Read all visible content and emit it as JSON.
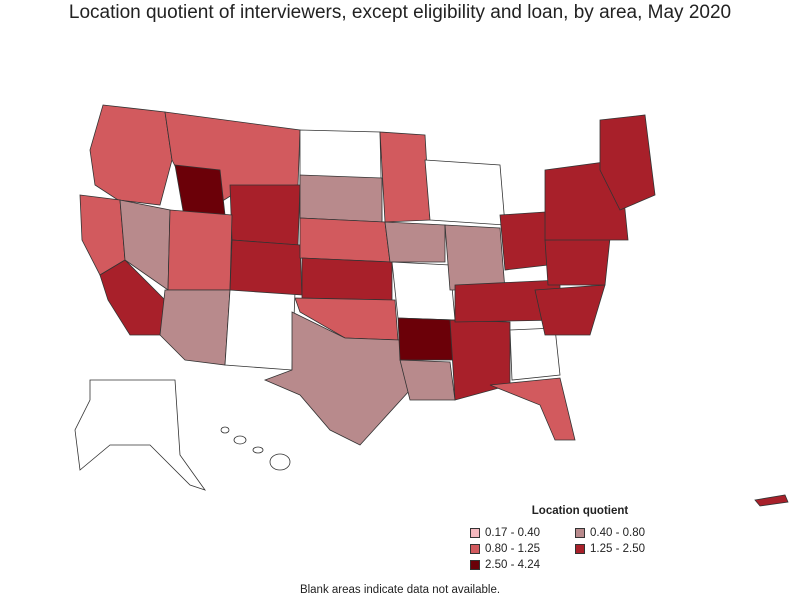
{
  "title": "Location quotient of interviewers, except eligibility and loan, by area, May 2020",
  "legend": {
    "title": "Location quotient",
    "items": [
      {
        "label": "0.17 - 0.40",
        "color": "#f4b8be"
      },
      {
        "label": "0.40 - 0.80",
        "color": "#b88a8c"
      },
      {
        "label": "0.80 - 1.25",
        "color": "#d25a5e"
      },
      {
        "label": "1.25 - 2.50",
        "color": "#a8202a"
      },
      {
        "label": "2.50 - 4.24",
        "color": "#6b0008"
      }
    ]
  },
  "footnote": "Blank areas indicate data not available.",
  "colors": {
    "blank": "#ffffff",
    "outline": "#333333"
  }
}
